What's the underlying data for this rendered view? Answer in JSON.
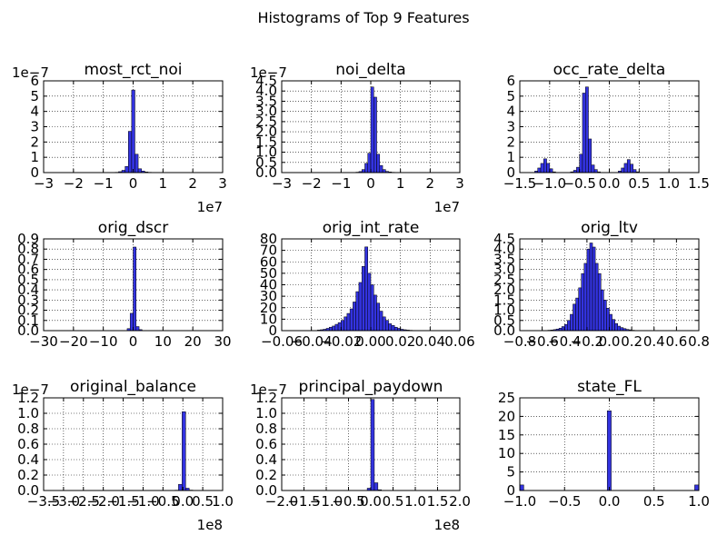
{
  "figure": {
    "title": "Histograms of Top 9 Features"
  },
  "style": {
    "bar_fill": "#3333e0",
    "bar_edge": "#000000",
    "axes_edge": "#000000",
    "grid_color": "#000000",
    "grid": "dotted"
  },
  "chart_data": [
    {
      "type": "bar",
      "title": "most_rct_noi",
      "grid": true,
      "xlim": [
        -30000000,
        30000000
      ],
      "ylim": [
        0,
        6e-07
      ],
      "xticks": [
        -30000000,
        -20000000,
        -10000000,
        0,
        10000000,
        20000000,
        30000000
      ],
      "xtick_labels": [
        "−3",
        "−2",
        "−1",
        "0",
        "1",
        "2",
        "3"
      ],
      "yticks": [
        0,
        1e-07,
        2e-07,
        3e-07,
        4e-07,
        5e-07,
        6e-07
      ],
      "ytick_labels": [
        "0",
        "1",
        "2",
        "3",
        "4",
        "5",
        "6"
      ],
      "x_offset_label": "1e7",
      "y_offset_label": "1e−7",
      "bins": {
        "start": -28000000,
        "width": 1100000,
        "values": [
          6e-10,
          0,
          0,
          0,
          0,
          0,
          0,
          0,
          0,
          0,
          0,
          0,
          0,
          0,
          0,
          0,
          0,
          0,
          4e-10,
          1e-09,
          2e-09,
          6e-09,
          1.5e-08,
          4e-08,
          2.7e-07,
          5.4e-07,
          1.2e-07,
          2.5e-08,
          1e-08,
          4e-09,
          2e-09,
          1e-09,
          5e-10
        ]
      }
    },
    {
      "type": "bar",
      "title": "noi_delta",
      "grid": true,
      "xlim": [
        -30000000,
        30000000
      ],
      "ylim": [
        0,
        4.5e-07
      ],
      "xticks": [
        -30000000,
        -20000000,
        -10000000,
        0,
        10000000,
        20000000,
        30000000
      ],
      "xtick_labels": [
        "−3",
        "−2",
        "−1",
        "0",
        "1",
        "2",
        "3"
      ],
      "yticks": [
        0,
        5e-08,
        1e-07,
        1.5e-07,
        2e-07,
        2.5e-07,
        3e-07,
        3.5e-07,
        4e-07,
        4.5e-07
      ],
      "ytick_labels": [
        "0.0",
        "0.5",
        "1.0",
        "1.5",
        "2.0",
        "2.5",
        "3.0",
        "3.5",
        "4.0",
        "4.5"
      ],
      "x_offset_label": "1e7",
      "y_offset_label": "1e−7",
      "bins": {
        "start": -6000000,
        "width": 1000000,
        "values": [
          1e-09,
          2e-09,
          5e-09,
          1.5e-08,
          4.5e-08,
          9.5e-08,
          4.2e-07,
          3.7e-07,
          9e-08,
          3.5e-08,
          1.5e-08,
          6e-09,
          3e-09,
          1.5e-09,
          8e-10,
          4e-10
        ]
      }
    },
    {
      "type": "bar",
      "title": "occ_rate_delta",
      "grid": true,
      "xlim": [
        -1.5,
        1.5
      ],
      "ylim": [
        0,
        6
      ],
      "xticks": [
        -1.5,
        -1.0,
        -0.5,
        0,
        0.5,
        1.0,
        1.5
      ],
      "xtick_labels": [
        "−1.5",
        "−1.0",
        "−0.5",
        "0.0",
        "0.5",
        "1.0",
        "1.5"
      ],
      "yticks": [
        0,
        1,
        2,
        3,
        4,
        5,
        6
      ],
      "ytick_labels": [
        "0",
        "1",
        "2",
        "3",
        "4",
        "5",
        "6"
      ],
      "bins": {
        "start": -1.25,
        "width": 0.05,
        "values": [
          0.1,
          0.3,
          0.6,
          0.9,
          0.6,
          0.25,
          0.05,
          0,
          0,
          0,
          0,
          0,
          0.05,
          0.15,
          0.35,
          1.2,
          5.2,
          5.6,
          2.2,
          0.5,
          0.2,
          0.05,
          0,
          0,
          0,
          0,
          0,
          0,
          0.1,
          0.3,
          0.6,
          0.85,
          0.55,
          0.2,
          0.05
        ]
      }
    },
    {
      "type": "bar",
      "title": "orig_dscr",
      "grid": true,
      "xlim": [
        -30,
        30
      ],
      "ylim": [
        0,
        0.9
      ],
      "xticks": [
        -30,
        -20,
        -10,
        0,
        10,
        20,
        30
      ],
      "xtick_labels": [
        "−30",
        "−20",
        "−10",
        "0",
        "10",
        "20",
        "30"
      ],
      "yticks": [
        0,
        0.1,
        0.2,
        0.3,
        0.4,
        0.5,
        0.6,
        0.7,
        0.8,
        0.9
      ],
      "ytick_labels": [
        "0.0",
        "0.1",
        "0.2",
        "0.3",
        "0.4",
        "0.5",
        "0.6",
        "0.7",
        "0.8",
        "0.9"
      ],
      "bins": {
        "start": -2,
        "width": 1,
        "values": [
          0.02,
          0.17,
          0.82,
          0.04,
          0.01
        ]
      }
    },
    {
      "type": "bar",
      "title": "orig_int_rate",
      "grid": true,
      "xlim": [
        -0.06,
        0.06
      ],
      "ylim": [
        0,
        80
      ],
      "xticks": [
        -0.06,
        -0.04,
        -0.02,
        0,
        0.02,
        0.04,
        0.06
      ],
      "xtick_labels": [
        "−0.06",
        "−0.04",
        "−0.02",
        "0.00",
        "0.02",
        "0.04",
        "0.06"
      ],
      "yticks": [
        0,
        10,
        20,
        30,
        40,
        50,
        60,
        70,
        80
      ],
      "ytick_labels": [
        "0",
        "10",
        "20",
        "30",
        "40",
        "50",
        "60",
        "70",
        "80"
      ],
      "bins": {
        "start": -0.036,
        "width": 0.002,
        "values": [
          0.5,
          0.8,
          1.2,
          2,
          3,
          4,
          5.5,
          7,
          9,
          12,
          15,
          19,
          25,
          34,
          42,
          56,
          73,
          50,
          40,
          31,
          24,
          17,
          12,
          9,
          6,
          4.5,
          3,
          2,
          1.2,
          0.8,
          0.5,
          0.3,
          0.2,
          0.1
        ]
      }
    },
    {
      "type": "bar",
      "title": "orig_ltv",
      "grid": true,
      "xlim": [
        -0.8,
        0.8
      ],
      "ylim": [
        0,
        4.5
      ],
      "xticks": [
        -0.8,
        -0.6,
        -0.4,
        -0.2,
        0,
        0.2,
        0.4,
        0.6,
        0.8
      ],
      "xtick_labels": [
        "−0.8",
        "−0.6",
        "−0.4",
        "−0.2",
        "0.0",
        "0.2",
        "0.4",
        "0.6",
        "0.8"
      ],
      "yticks": [
        0,
        0.5,
        1,
        1.5,
        2,
        2.5,
        3,
        3.5,
        4,
        4.5
      ],
      "ytick_labels": [
        "0.0",
        "0.5",
        "1.0",
        "1.5",
        "2.0",
        "2.5",
        "3.0",
        "3.5",
        "4.0",
        "4.5"
      ],
      "bins": {
        "start": -0.55,
        "width": 0.025,
        "values": [
          0.02,
          0.03,
          0.05,
          0.08,
          0.12,
          0.2,
          0.3,
          0.5,
          0.8,
          1.3,
          1.6,
          2.1,
          2.8,
          3.3,
          4.0,
          4.3,
          4.1,
          3.3,
          2.8,
          2.0,
          1.5,
          1.1,
          0.8,
          0.55,
          0.35,
          0.22,
          0.15,
          0.1,
          0.06,
          0.04,
          0.02
        ]
      }
    },
    {
      "type": "bar",
      "title": "original_balance",
      "grid": true,
      "xlim": [
        -350000000,
        100000000
      ],
      "ylim": [
        0,
        1.2e-08
      ],
      "xticks": [
        -350000000,
        -300000000,
        -250000000,
        -200000000,
        -150000000,
        -100000000,
        -50000000,
        0,
        50000000,
        100000000
      ],
      "xtick_labels": [
        "−3.5",
        "−3.0",
        "−2.5",
        "−2.0",
        "−1.5",
        "−1.0",
        "−0.5",
        "0.0",
        "0.5",
        "1.0"
      ],
      "yticks": [
        0,
        2e-09,
        4e-09,
        6e-09,
        8e-09,
        1e-08,
        1.2e-08
      ],
      "ytick_labels": [
        "0.0",
        "0.2",
        "0.4",
        "0.6",
        "0.8",
        "1.0",
        "1.2"
      ],
      "x_offset_label": "1e8",
      "y_offset_label": "1e−7",
      "bins": {
        "start": -20000000,
        "width": 9000000,
        "values": [
          4e-11,
          8e-10,
          1.02e-08,
          3e-10,
          5e-11
        ]
      }
    },
    {
      "type": "bar",
      "title": "principal_paydown",
      "grid": true,
      "xlim": [
        -200000000,
        200000000
      ],
      "ylim": [
        0,
        1.2e-08
      ],
      "xticks": [
        -200000000,
        -150000000,
        -100000000,
        -50000000,
        0,
        50000000,
        100000000,
        150000000,
        200000000
      ],
      "xtick_labels": [
        "−2.0",
        "−1.5",
        "−1.0",
        "−0.5",
        "0.0",
        "0.5",
        "1.0",
        "1.5",
        "2.0"
      ],
      "yticks": [
        0,
        2e-09,
        4e-09,
        6e-09,
        8e-09,
        1e-08,
        1.2e-08
      ],
      "ytick_labels": [
        "0.0",
        "0.2",
        "0.4",
        "0.6",
        "0.8",
        "1.0",
        "1.2"
      ],
      "x_offset_label": "1e8",
      "y_offset_label": "1e−7",
      "bins": {
        "start": -8000000,
        "width": 8000000,
        "values": [
          3e-10,
          1.18e-08,
          1e-09,
          1e-10
        ]
      }
    },
    {
      "type": "bar",
      "title": "state_FL",
      "grid": true,
      "xlim": [
        -1.0,
        1.0
      ],
      "ylim": [
        0,
        25
      ],
      "xticks": [
        -1.0,
        -0.5,
        0,
        0.5,
        1.0
      ],
      "xtick_labels": [
        "−1.0",
        "−0.5",
        "0.0",
        "0.5",
        "1.0"
      ],
      "yticks": [
        0,
        5,
        10,
        15,
        20,
        25
      ],
      "ytick_labels": [
        "0",
        "5",
        "10",
        "15",
        "20",
        "25"
      ],
      "bins": {
        "start": -1.0,
        "width": 0.0444,
        "values": [
          1.5,
          0,
          0,
          0,
          0,
          0,
          0,
          0,
          0,
          0,
          0,
          0,
          0,
          0,
          0,
          0,
          0,
          0,
          0,
          0,
          0,
          0,
          21.5,
          0,
          0,
          0,
          0,
          0,
          0,
          0,
          0,
          0,
          0,
          0,
          0,
          0,
          0,
          0,
          0,
          0,
          0,
          0,
          0,
          0,
          1.5
        ]
      }
    }
  ]
}
